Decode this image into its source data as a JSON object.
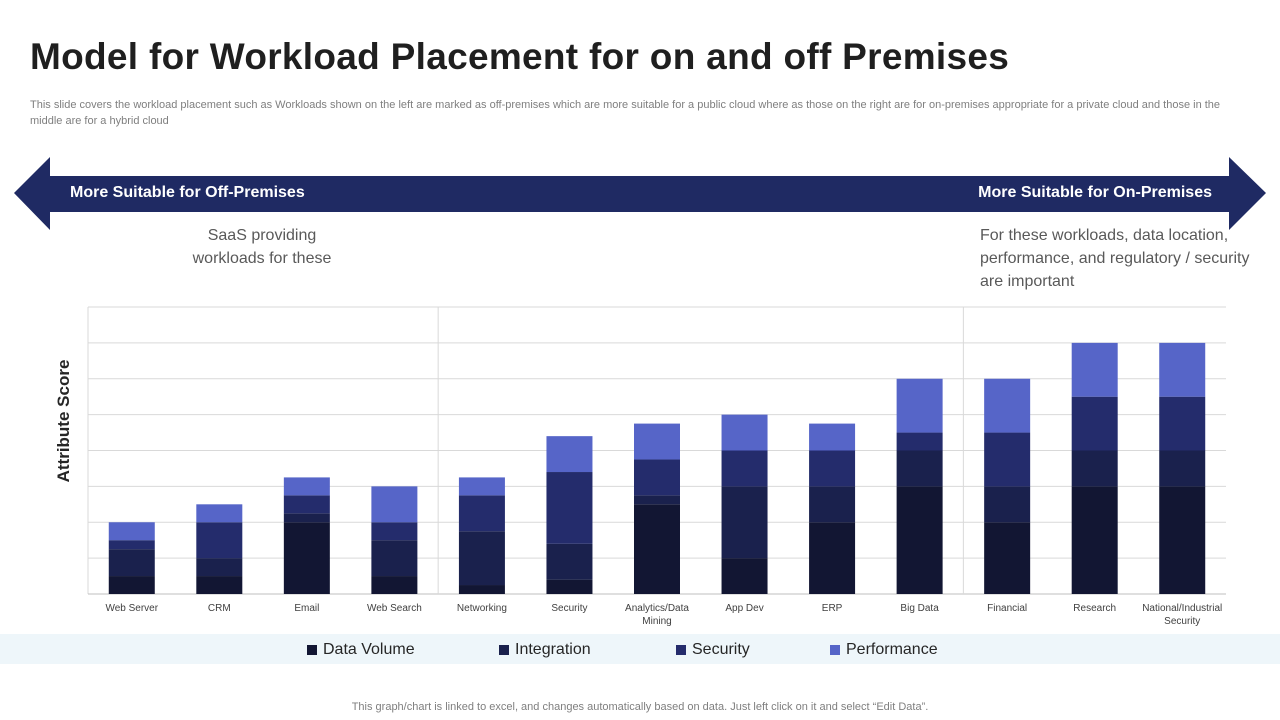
{
  "slide": {
    "title": "Model for Workload Placement for on and off Premises",
    "subtitle": "This slide covers the workload placement such as Workloads shown on the  left are marked as off-premises which are more  suitable for a public cloud where as those on the  right are for on-premises appropriate for a private cloud and those  in the  middle are for a hybrid cloud",
    "footer": "This graph/chart is linked to excel, and changes automatically based on data. Just left click on it and select “Edit Data”."
  },
  "arrow": {
    "left_label": "More Suitable for Off-Premises",
    "right_label": "More Suitable for On-Premises",
    "color": "#1f2a63"
  },
  "notes": {
    "left": "SaaS providing workloads for these",
    "right": "For these workloads, data location, performance, and regulatory / security are important"
  },
  "chart_data": {
    "type": "bar",
    "stacked": true,
    "ylabel": "Attribute Score",
    "xlabel": "",
    "ylim": [
      0,
      16
    ],
    "grid": true,
    "legend_position": "bottom",
    "categories": [
      "Web Server",
      "CRM",
      "Email",
      "Web Search",
      "Networking",
      "Security",
      "Analytics/Data Mining",
      "App Dev",
      "ERP",
      "Big Data",
      "Financial",
      "Research",
      "National/Industrial Security"
    ],
    "series": [
      {
        "name": "Data Volume",
        "color": "#121633",
        "values": [
          1,
          1,
          4,
          1,
          0.5,
          0.8,
          5,
          2,
          4,
          6,
          4,
          6,
          6
        ]
      },
      {
        "name": "Integration",
        "color": "#1a214d",
        "values": [
          1.5,
          1,
          0.5,
          2,
          3,
          2,
          0.5,
          4,
          2,
          2,
          2,
          2,
          2
        ]
      },
      {
        "name": "Security",
        "color": "#242c6c",
        "values": [
          0.5,
          2,
          1,
          1,
          2,
          4,
          2,
          2,
          2,
          1,
          3,
          3,
          3
        ]
      },
      {
        "name": "Performance",
        "color": "#5665c8",
        "values": [
          1,
          1,
          1,
          2,
          1,
          2,
          2,
          2,
          1.5,
          3,
          3,
          3,
          3
        ]
      }
    ],
    "dividers_after": [
      "Web Search",
      "Big Data"
    ]
  }
}
